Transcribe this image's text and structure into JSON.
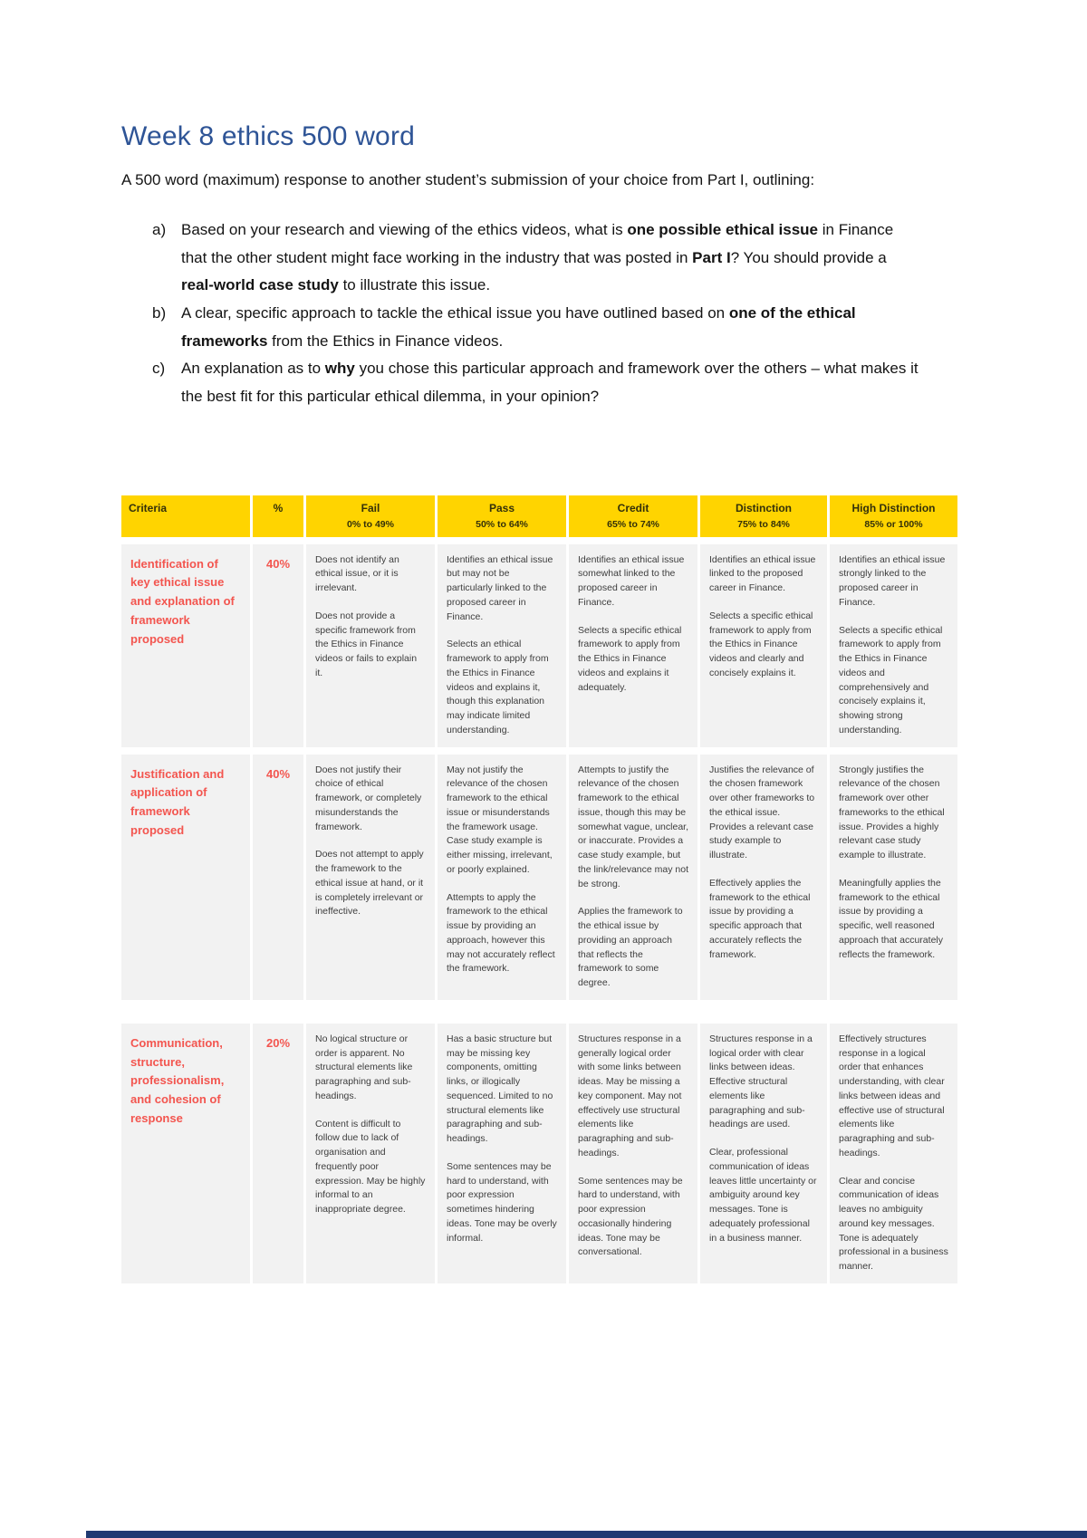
{
  "page": {
    "title": "Week 8 ethics 500 word",
    "intro": "A 500 word (maximum) response to another student’s submission of your choice from Part I, outlining:"
  },
  "brief": {
    "items": [
      {
        "marker": "a)",
        "segments": [
          {
            "t": "Based on your research and viewing of the ethics videos, what is ",
            "b": false
          },
          {
            "t": "one possible ethical issue",
            "b": true
          },
          {
            "t": " in Finance that the other student might face working in the industry that was posted in ",
            "b": false
          },
          {
            "t": "Part I",
            "b": true
          },
          {
            "t": "? You should provide a ",
            "b": false
          },
          {
            "t": "real-world case study",
            "b": true
          },
          {
            "t": " to illustrate this issue.",
            "b": false
          }
        ]
      },
      {
        "marker": "b)",
        "segments": [
          {
            "t": "A clear, specific approach to tackle the ethical issue you have outlined based on ",
            "b": false
          },
          {
            "t": "one of the ethical frameworks",
            "b": true
          },
          {
            "t": " from the Ethics in Finance videos.",
            "b": false
          }
        ]
      },
      {
        "marker": "c)",
        "segments": [
          {
            "t": "An explanation as to ",
            "b": false
          },
          {
            "t": "why",
            "b": true
          },
          {
            "t": " you chose this particular approach and framework over the others – what makes it the best fit for this particular ethical dilemma, in your opinion?",
            "b": false
          }
        ]
      }
    ]
  },
  "rubric": {
    "columns": [
      {
        "label": "Criteria",
        "sub": ""
      },
      {
        "label": "%",
        "sub": ""
      },
      {
        "label": "Fail",
        "sub": "0% to 49%"
      },
      {
        "label": "Pass",
        "sub": "50% to 64%"
      },
      {
        "label": "Credit",
        "sub": "65% to 74%"
      },
      {
        "label": "Distinction",
        "sub": "75% to 84%"
      },
      {
        "label": "High Distinction",
        "sub": "85% or 100%"
      }
    ],
    "rows": [
      {
        "criteria": "Identification of key ethical issue and explanation of framework proposed",
        "weight": "40%",
        "cells": [
          [
            "Does not identify an ethical issue, or it is irrelevant.",
            "Does not provide a specific framework from the Ethics in Finance videos or fails to explain it."
          ],
          [
            "Identifies an ethical issue but may not be particularly linked to the proposed career in Finance.",
            "Selects an ethical framework to apply from the Ethics in Finance videos and explains it, though this explanation may indicate limited understanding."
          ],
          [
            "Identifies an ethical issue somewhat linked to the proposed career in Finance.",
            "Selects a specific ethical framework to apply from the Ethics in Finance videos and explains it adequately."
          ],
          [
            "Identifies an ethical issue linked to the proposed career in Finance.",
            "Selects a specific ethical framework to apply from the Ethics in Finance videos and clearly and concisely explains it."
          ],
          [
            "Identifies an ethical issue strongly linked to the proposed career in Finance.",
            "Selects a specific ethical framework to apply from the Ethics in Finance videos and comprehensively and concisely explains it, showing strong understanding."
          ]
        ]
      },
      {
        "criteria": "Justification and application of framework proposed",
        "weight": "40%",
        "cells": [
          [
            "Does not justify their choice of ethical framework, or completely misunderstands the framework.",
            "Does not attempt to apply the framework to the ethical issue at hand, or it is completely irrelevant or ineffective."
          ],
          [
            "May not justify the relevance of the chosen framework to the ethical issue or misunderstands the framework usage. Case study example is either missing, irrelevant, or poorly explained.",
            "Attempts to apply the framework to the ethical issue by providing an approach, however this may not accurately reflect the framework."
          ],
          [
            "Attempts to justify the relevance of the chosen framework to the ethical issue, though this may be somewhat vague, unclear, or inaccurate. Provides a case study example, but the link/relevance may not be strong.",
            "Applies the framework to the ethical issue by providing an approach that reflects the framework to some degree."
          ],
          [
            "Justifies the relevance of the chosen framework over other frameworks to the ethical issue. Provides a relevant case study example to illustrate.",
            "Effectively applies the framework to the ethical issue by providing a specific approach that accurately reflects the framework."
          ],
          [
            "Strongly justifies the relevance of the chosen framework over other frameworks to the ethical issue. Provides a highly relevant case study example to illustrate.",
            "Meaningfully applies the framework to the ethical issue by providing a specific, well reasoned approach that accurately reflects the framework."
          ]
        ]
      },
      {
        "criteria": "Communication, structure, professionalism, and cohesion of response",
        "weight": "20%",
        "cells": [
          [
            "No logical structure or order is apparent. No structural elements like paragraphing and sub-headings.",
            "Content is difficult to follow due to lack of organisation and frequently poor expression. May be highly informal to an inappropriate degree."
          ],
          [
            "Has a basic structure but may be missing key components, omitting links, or illogically sequenced. Limited to no structural elements like paragraphing and sub-headings.",
            "Some sentences may be hard to understand, with poor expression sometimes hindering ideas. Tone may be overly informal."
          ],
          [
            "Structures response in a generally logical order with some links between ideas. May be missing a key component. May not effectively use structural elements like paragraphing and sub-headings.",
            "Some sentences may be hard to understand, with poor expression occasionally hindering ideas. Tone may be conversational."
          ],
          [
            "Structures response in a logical order with clear links between ideas. Effective structural elements like paragraphing and sub-headings are used.",
            "Clear, professional communication of ideas leaves little uncertainty or ambiguity around key messages. Tone is adequately professional in a business manner."
          ],
          [
            "Effectively structures response in a logical order that enhances understanding, with clear links between ideas and effective use of structural elements like paragraphing and sub-headings.",
            "Clear and concise communication of ideas leaves no ambiguity around key messages. Tone is adequately professional in a business manner."
          ]
        ]
      }
    ]
  },
  "colors": {
    "title_blue": "#2e5496",
    "header_yellow": "#ffd400",
    "criteria_red": "#f3554f",
    "footer_blue": "#203a72"
  }
}
